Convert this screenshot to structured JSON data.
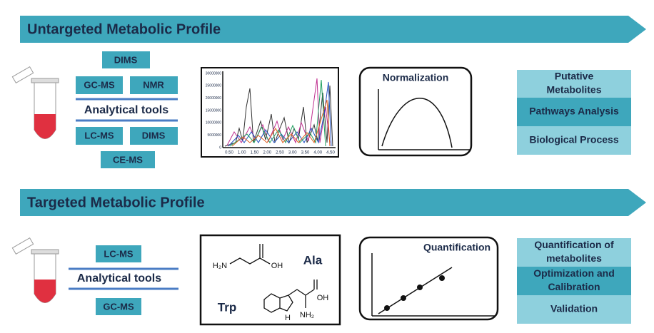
{
  "untargeted": {
    "title": "Untargeted Metabolic Profile",
    "tools": {
      "top": [
        "DIMS",
        "GC-MS",
        "NMR"
      ],
      "label": "Analytical tools",
      "bottom": [
        "LC-MS",
        "DIMS",
        "CE-MS"
      ]
    },
    "chromatogram": {
      "y_ticks": [
        "30000000",
        "25000000",
        "20000000",
        "15000000",
        "10000000",
        "5000000",
        "0"
      ],
      "x_ticks": [
        "0.50",
        "1.00",
        "1.50",
        "2.00",
        "2.50",
        "3.00",
        "3.50",
        "4.00",
        "4.50"
      ]
    },
    "normalization": "Normalization",
    "outputs": [
      {
        "lines": [
          "Putative",
          "Metabolites"
        ]
      },
      {
        "lines": [
          "Pathways Analysis"
        ]
      },
      {
        "lines": [
          "Biological Process"
        ]
      }
    ]
  },
  "targeted": {
    "title": "Targeted Metabolic Profile",
    "tools": {
      "top": [
        "LC-MS"
      ],
      "label": "Analytical tools",
      "bottom": [
        "GC-MS"
      ]
    },
    "chemistry": {
      "ala": {
        "name": "Ala",
        "amine": "H₂N",
        "hydroxyl": "OH"
      },
      "trp": {
        "name": "Trp",
        "amine": "NH₂",
        "hydroxyl": "OH",
        "indole_h": "H"
      }
    },
    "quantification": "Quantification",
    "outputs": [
      {
        "lines": [
          "Quantification of",
          "metabolites"
        ]
      },
      {
        "lines": [
          "Optimization and",
          "Calibration"
        ]
      },
      {
        "lines": [
          "Validation"
        ]
      }
    ]
  }
}
